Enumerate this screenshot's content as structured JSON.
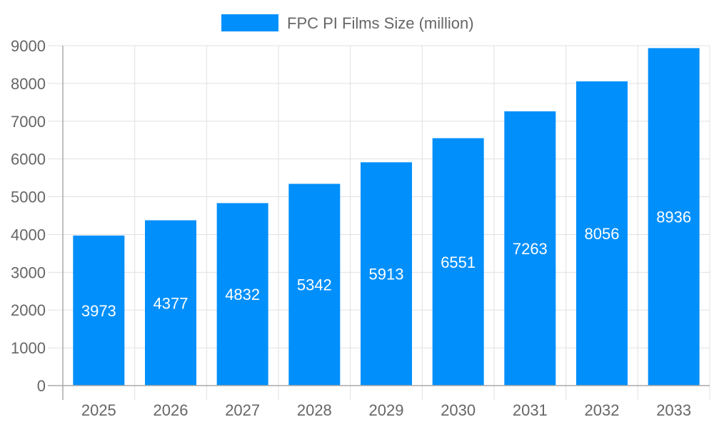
{
  "chart_data": {
    "type": "bar",
    "title": "",
    "xlabel": "",
    "ylabel": "",
    "categories": [
      "2025",
      "2026",
      "2027",
      "2028",
      "2029",
      "2030",
      "2031",
      "2032",
      "2033"
    ],
    "series": [
      {
        "name": "FPC PI Films Size (million)",
        "values": [
          3973,
          4377,
          4832,
          5342,
          5913,
          6551,
          7263,
          8056,
          8936
        ],
        "color": "#008ffb"
      }
    ],
    "ylim": [
      0,
      9000
    ],
    "yticks": [
      0,
      1000,
      2000,
      3000,
      4000,
      5000,
      6000,
      7000,
      8000,
      9000
    ],
    "grid": true,
    "legend": "top-center",
    "data_labels": true
  }
}
